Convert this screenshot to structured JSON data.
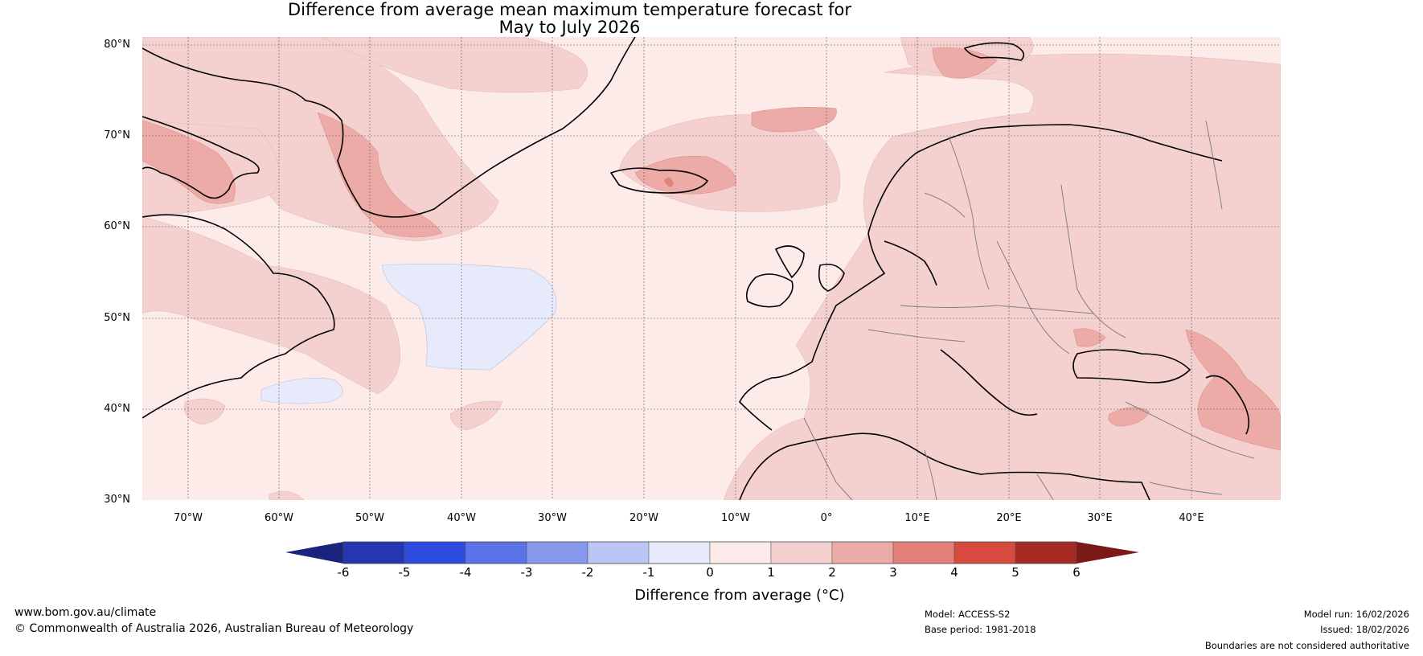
{
  "title": {
    "line1": "Difference from average mean maximum temperature forecast for",
    "line2": "May to July 2026"
  },
  "map": {
    "region": "North Atlantic and Europe",
    "lat_labels": [
      "80°N",
      "70°N",
      "60°N",
      "50°N",
      "40°N",
      "30°N"
    ],
    "lon_labels": [
      "70°W",
      "60°W",
      "50°W",
      "40°W",
      "30°W",
      "20°W",
      "10°W",
      "0°",
      "10°E",
      "20°E",
      "30°E",
      "40°E"
    ],
    "colors": {
      "land_outline": "#000000",
      "borders": "#808080",
      "grid": "#555555"
    }
  },
  "colorbar": {
    "ticks": [
      "-6",
      "-5",
      "-4",
      "-3",
      "-2",
      "-1",
      "0",
      "1",
      "2",
      "3",
      "4",
      "5",
      "6"
    ],
    "colors": [
      "#1a237e",
      "#2537b0",
      "#2e4be0",
      "#5b73e8",
      "#8598ec",
      "#bcc6f4",
      "#e7eafb",
      "#fcebe9",
      "#f4d1cf",
      "#ecaba7",
      "#e38079",
      "#d94a3e",
      "#a82a24",
      "#7b1a17"
    ],
    "label": "Difference from average (°C)"
  },
  "footer": {
    "website": "www.bom.gov.au/climate",
    "copyright": "© Commonwealth of Australia 2026, Australian Bureau of Meteorology",
    "model": "Model: ACCESS-S2",
    "base_period": "Base period: 1981-2018",
    "model_run": "Model run: 16/02/2026",
    "issued": "Issued: 18/02/2026",
    "disclaimer": "Boundaries are not considered authoritative"
  }
}
